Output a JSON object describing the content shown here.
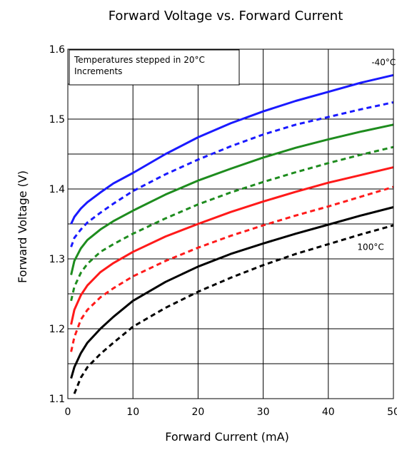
{
  "chart_data": {
    "type": "line",
    "title": "Forward Voltage vs. Forward Current",
    "xlabel": "Forward Current (mA)",
    "ylabel": "Forward Voltage (V)",
    "xlim": [
      0,
      50
    ],
    "ylim": [
      1.1,
      1.6
    ],
    "x_ticks": [
      "0",
      "10",
      "20",
      "30",
      "40",
      "50"
    ],
    "y_ticks": [
      "1.1",
      "1.2",
      "1.3",
      "1.4",
      "1.5",
      "1.6"
    ],
    "grid": true,
    "legend_box": [
      "Temperatures stepped in 20°C",
      "Increments"
    ],
    "annotations": [
      {
        "text": "-40°C",
        "x": 48.5,
        "y": 1.577
      },
      {
        "text": "100°C",
        "x": 46.5,
        "y": 1.313
      }
    ],
    "series": [
      {
        "color": "#1a1aff",
        "dash": "solid",
        "x": [
          0.5,
          1,
          2,
          3,
          5,
          7,
          10,
          15,
          20,
          25,
          30,
          35,
          40,
          45,
          50
        ],
        "y": [
          1.35,
          1.36,
          1.372,
          1.381,
          1.395,
          1.408,
          1.423,
          1.45,
          1.474,
          1.494,
          1.511,
          1.526,
          1.539,
          1.552,
          1.563
        ]
      },
      {
        "color": "#1a1aff",
        "dash": "dashed",
        "x": [
          0.5,
          1,
          2,
          3,
          5,
          7,
          10,
          15,
          20,
          25,
          30,
          35,
          40,
          45,
          50
        ],
        "y": [
          1.317,
          1.33,
          1.342,
          1.352,
          1.366,
          1.379,
          1.397,
          1.421,
          1.442,
          1.461,
          1.478,
          1.492,
          1.503,
          1.514,
          1.524
        ]
      },
      {
        "color": "#1e8c1e",
        "dash": "solid",
        "x": [
          0.5,
          1,
          2,
          3,
          5,
          7,
          10,
          15,
          20,
          25,
          30,
          35,
          40,
          45,
          50
        ],
        "y": [
          1.277,
          1.297,
          1.315,
          1.327,
          1.342,
          1.354,
          1.369,
          1.392,
          1.412,
          1.429,
          1.445,
          1.459,
          1.471,
          1.482,
          1.492
        ]
      },
      {
        "color": "#1e8c1e",
        "dash": "dashed",
        "x": [
          0.5,
          1,
          2,
          3,
          5,
          7,
          10,
          15,
          20,
          25,
          30,
          35,
          40,
          45,
          50
        ],
        "y": [
          1.24,
          1.26,
          1.28,
          1.293,
          1.31,
          1.321,
          1.336,
          1.358,
          1.378,
          1.395,
          1.41,
          1.424,
          1.437,
          1.449,
          1.46
        ]
      },
      {
        "color": "#ff1a1a",
        "dash": "solid",
        "x": [
          0.5,
          1,
          2,
          3,
          5,
          7,
          10,
          15,
          20,
          25,
          30,
          35,
          40,
          45,
          50
        ],
        "y": [
          1.206,
          1.227,
          1.248,
          1.262,
          1.281,
          1.294,
          1.31,
          1.332,
          1.35,
          1.367,
          1.382,
          1.396,
          1.409,
          1.42,
          1.431
        ]
      },
      {
        "color": "#ff1a1a",
        "dash": "dashed",
        "x": [
          0.5,
          1,
          2,
          3,
          5,
          7,
          10,
          15,
          20,
          25,
          30,
          35,
          40,
          45,
          50
        ],
        "y": [
          1.167,
          1.188,
          1.213,
          1.227,
          1.245,
          1.258,
          1.275,
          1.297,
          1.316,
          1.333,
          1.348,
          1.362,
          1.375,
          1.389,
          1.403
        ]
      },
      {
        "color": "#000000",
        "dash": "solid",
        "x": [
          0.5,
          1,
          2,
          3,
          5,
          7,
          10,
          15,
          20,
          25,
          30,
          35,
          40,
          45,
          50
        ],
        "y": [
          1.129,
          1.145,
          1.165,
          1.18,
          1.2,
          1.217,
          1.24,
          1.267,
          1.289,
          1.307,
          1.322,
          1.336,
          1.349,
          1.362,
          1.374
        ]
      },
      {
        "color": "#000000",
        "dash": "dashed",
        "x": [
          1,
          2,
          3,
          5,
          7,
          10,
          15,
          20,
          25,
          30,
          35,
          40,
          45,
          50
        ],
        "y": [
          1.107,
          1.13,
          1.145,
          1.164,
          1.18,
          1.203,
          1.23,
          1.253,
          1.273,
          1.291,
          1.307,
          1.321,
          1.335,
          1.348
        ]
      }
    ]
  }
}
